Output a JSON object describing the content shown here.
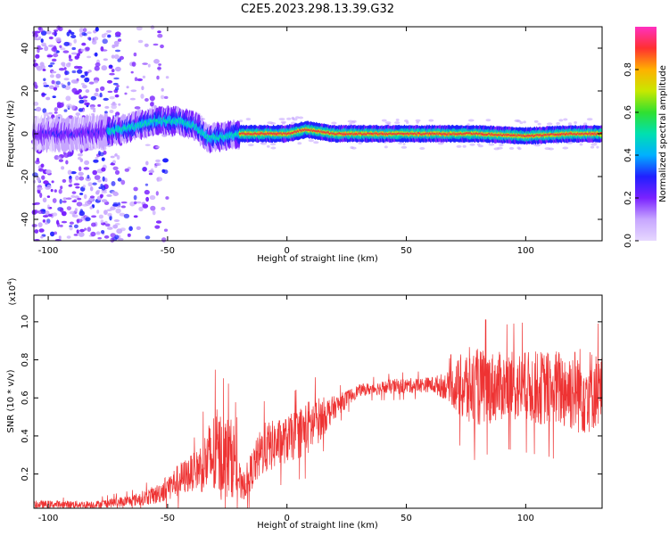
{
  "title": "C2E5.2023.298.13.39.G32",
  "chart_data": [
    {
      "type": "heatmap",
      "xlabel": "Height of straight line (km)",
      "ylabel": "Frequency (Hz)",
      "xlim": [
        -106,
        132
      ],
      "ylim": [
        -50,
        50
      ],
      "x_ticks": [
        -100,
        -50,
        0,
        50,
        100
      ],
      "x_tick_labels": [
        "-100",
        "-50",
        "0",
        "50",
        "100"
      ],
      "y_ticks": [
        -40,
        -20,
        0,
        20,
        40
      ],
      "y_tick_labels": [
        "-40",
        "-20",
        "0",
        "20",
        "40"
      ],
      "ridge_profile": [
        {
          "x": -106,
          "y": 0
        },
        {
          "x": -90,
          "y": 0
        },
        {
          "x": -75,
          "y": 1
        },
        {
          "x": -65,
          "y": 3
        },
        {
          "x": -55,
          "y": 6
        },
        {
          "x": -45,
          "y": 6
        },
        {
          "x": -38,
          "y": 3
        },
        {
          "x": -33,
          "y": -2
        },
        {
          "x": -25,
          "y": -1
        },
        {
          "x": -20,
          "y": 0
        },
        {
          "x": 0,
          "y": 0
        },
        {
          "x": 8,
          "y": 2
        },
        {
          "x": 20,
          "y": 0
        },
        {
          "x": 50,
          "y": 0
        },
        {
          "x": 80,
          "y": 0
        },
        {
          "x": 100,
          "y": -1
        },
        {
          "x": 120,
          "y": 0
        },
        {
          "x": 132,
          "y": 0
        }
      ],
      "colorbar": {
        "label": "Normalized spectral amplitude",
        "range": [
          0,
          1
        ],
        "ticks": [
          0.0,
          0.2,
          0.4,
          0.6,
          0.8
        ],
        "tick_labels": [
          "0.0",
          "0.2",
          "0.4",
          "0.6",
          "0.8"
        ],
        "colors": [
          "#e6d8ff",
          "#c7a6ff",
          "#7a22ff",
          "#2020ff",
          "#00b0ff",
          "#00e0b0",
          "#30e030",
          "#c8e800",
          "#ffb000",
          "#ff3030",
          "#ff30c0"
        ]
      }
    },
    {
      "type": "line",
      "xlabel": "Height of straight line (km)",
      "ylabel": "SNR (10 * v/v)",
      "scale_label": "(x10",
      "scale_exponent": "4",
      "scale_suffix": ")",
      "xlim": [
        -106,
        132
      ],
      "ylim": [
        0.02,
        1.14
      ],
      "x_ticks": [
        -100,
        -50,
        0,
        50,
        100
      ],
      "x_tick_labels": [
        "-100",
        "-50",
        "0",
        "50",
        "100"
      ],
      "y_ticks": [
        0.2,
        0.4,
        0.6,
        0.8,
        1.0
      ],
      "y_tick_labels": [
        "0.2",
        "0.4",
        "0.6",
        "0.8",
        "1.0"
      ],
      "series": [
        {
          "color": "#ee3333",
          "envelope": [
            {
              "x": -106,
              "mean": 0.04,
              "amp": 0.02
            },
            {
              "x": -80,
              "mean": 0.04,
              "amp": 0.02
            },
            {
              "x": -65,
              "mean": 0.06,
              "amp": 0.03
            },
            {
              "x": -55,
              "mean": 0.09,
              "amp": 0.05
            },
            {
              "x": -45,
              "mean": 0.17,
              "amp": 0.09
            },
            {
              "x": -38,
              "mean": 0.22,
              "amp": 0.1
            },
            {
              "x": -30,
              "mean": 0.3,
              "amp": 0.25
            },
            {
              "x": -22,
              "mean": 0.28,
              "amp": 0.2
            },
            {
              "x": -19,
              "mean": 0.12,
              "amp": 0.07
            },
            {
              "x": -10,
              "mean": 0.33,
              "amp": 0.14
            },
            {
              "x": 0,
              "mean": 0.38,
              "amp": 0.12
            },
            {
              "x": 10,
              "mean": 0.45,
              "amp": 0.15
            },
            {
              "x": 20,
              "mean": 0.55,
              "amp": 0.06
            },
            {
              "x": 30,
              "mean": 0.64,
              "amp": 0.03
            },
            {
              "x": 45,
              "mean": 0.66,
              "amp": 0.04
            },
            {
              "x": 60,
              "mean": 0.67,
              "amp": 0.04
            },
            {
              "x": 68,
              "mean": 0.66,
              "amp": 0.08
            },
            {
              "x": 75,
              "mean": 0.65,
              "amp": 0.22
            },
            {
              "x": 90,
              "mean": 0.66,
              "amp": 0.18
            },
            {
              "x": 110,
              "mean": 0.65,
              "amp": 0.2
            },
            {
              "x": 125,
              "mean": 0.64,
              "amp": 0.24
            },
            {
              "x": 132,
              "mean": 0.64,
              "amp": 0.18
            }
          ]
        }
      ]
    }
  ]
}
